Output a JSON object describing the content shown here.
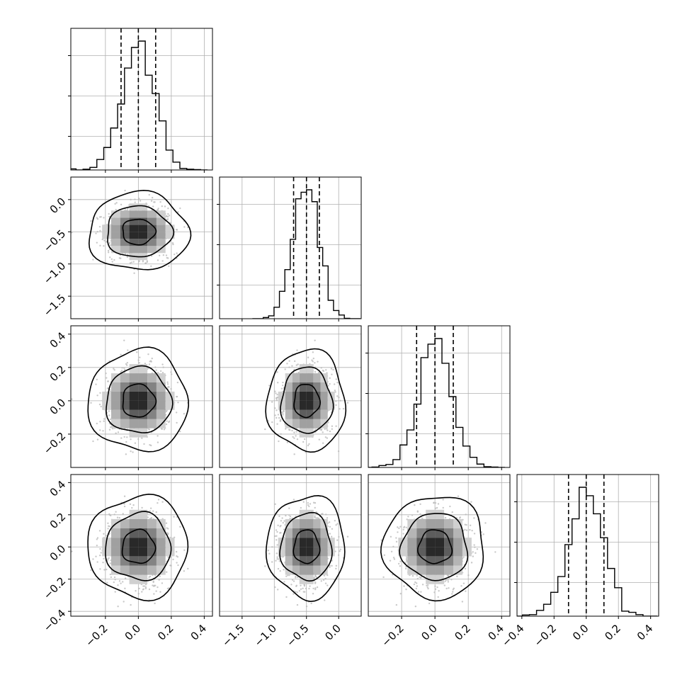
{
  "chart_data": {
    "type": "corner",
    "n_params": 4,
    "grid": true,
    "params": [
      {
        "mean": 0.0,
        "sd": 0.1,
        "range": [
          -0.41,
          0.45
        ],
        "ticks": [
          -0.2,
          0.0,
          0.2,
          0.4
        ],
        "tick_labels": [
          "−0.2",
          "0.0",
          "0.2",
          "0.4"
        ],
        "quantiles": [
          -0.105,
          0.0,
          0.105
        ]
      },
      {
        "mean": -0.5,
        "sd": 0.2,
        "range": [
          -1.85,
          0.35
        ],
        "ticks": [
          -1.5,
          -1.0,
          -0.5,
          0.0
        ],
        "tick_labels": [
          "−1.5",
          "−1.0",
          "−0.5",
          "0.0"
        ],
        "quantiles": [
          -0.7,
          -0.5,
          -0.3
        ]
      },
      {
        "mean": 0.0,
        "sd": 0.1,
        "range": [
          -0.4,
          0.45
        ],
        "ticks": [
          -0.2,
          0.0,
          0.2,
          0.4
        ],
        "tick_labels": [
          "−0.2",
          "0.0",
          "0.2",
          "0.4"
        ],
        "quantiles": [
          -0.11,
          0.0,
          0.11
        ]
      },
      {
        "mean": 0.0,
        "sd": 0.105,
        "range": [
          -0.43,
          0.45
        ],
        "ticks": [
          -0.4,
          -0.2,
          0.0,
          0.2,
          0.4
        ],
        "tick_labels": [
          "−0.4",
          "−0.2",
          "0.0",
          "0.2",
          "0.4"
        ],
        "quantiles": [
          -0.11,
          0.0,
          0.11
        ]
      }
    ],
    "row_axis_labels": {
      "row1": {
        "ticks": [
          0.0,
          -0.5,
          -1.0,
          -1.5
        ],
        "tick_labels": [
          "0.0",
          "−0.5",
          "−1.0",
          "−1.5"
        ]
      },
      "row2": {
        "ticks": [
          0.4,
          0.2,
          0.0,
          -0.2
        ],
        "tick_labels": [
          "0.4",
          "0.2",
          "0.0",
          "−0.2"
        ]
      },
      "row3": {
        "ticks": [
          0.4,
          0.2,
          0.0,
          -0.2,
          -0.4
        ],
        "tick_labels": [
          "0.4",
          "0.2",
          "0.0",
          "−0.2",
          "−0.4"
        ]
      }
    },
    "histogram_bins": 20,
    "contour_levels": [
      0.39,
      0.86,
      0.99
    ],
    "colors": {
      "line": "#000000",
      "scatter": "#bbbbbb",
      "grid": "#b0b0b0"
    }
  }
}
